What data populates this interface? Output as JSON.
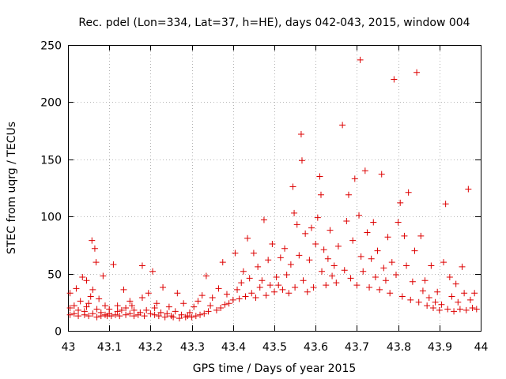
{
  "chart_data": {
    "type": "scatter",
    "title": "Rec. pdel (Lon=334, Lat=37, h=HE), days 042-043, 2015, window 004",
    "xlabel": "GPS time / Days of year 2015",
    "ylabel": "STEC from uqrg / TECUs",
    "xlim": [
      43,
      44
    ],
    "ylim": [
      0,
      250
    ],
    "xticks": [
      "43",
      "43.1",
      "43.2",
      "43.3",
      "43.4",
      "43.5",
      "43.6",
      "43.7",
      "43.8",
      "43.9",
      "44"
    ],
    "yticks": [
      "0",
      "50",
      "100",
      "150",
      "200",
      "250"
    ],
    "grid": true,
    "marker": "+",
    "color": "#dd0000",
    "series": [
      {
        "name": "STEC",
        "points": [
          [
            43.005,
            14
          ],
          [
            43.005,
            20
          ],
          [
            43.005,
            33
          ],
          [
            43.015,
            15
          ],
          [
            43.015,
            22
          ],
          [
            43.02,
            37
          ],
          [
            43.025,
            13
          ],
          [
            43.025,
            18
          ],
          [
            43.03,
            26
          ],
          [
            43.035,
            47
          ],
          [
            43.04,
            14
          ],
          [
            43.04,
            17
          ],
          [
            43.045,
            21
          ],
          [
            43.045,
            44
          ],
          [
            43.05,
            13
          ],
          [
            43.05,
            24
          ],
          [
            43.055,
            30
          ],
          [
            43.058,
            79
          ],
          [
            43.06,
            15
          ],
          [
            43.06,
            36
          ],
          [
            43.065,
            72
          ],
          [
            43.068,
            60
          ],
          [
            43.07,
            12
          ],
          [
            43.07,
            19
          ],
          [
            43.075,
            28
          ],
          [
            43.08,
            13
          ],
          [
            43.08,
            16
          ],
          [
            43.085,
            48
          ],
          [
            43.09,
            14
          ],
          [
            43.09,
            22
          ],
          [
            43.095,
            13
          ],
          [
            43.1,
            15
          ],
          [
            43.1,
            19
          ],
          [
            43.105,
            13
          ],
          [
            43.11,
            58
          ],
          [
            43.115,
            14
          ],
          [
            43.12,
            17
          ],
          [
            43.12,
            22
          ],
          [
            43.125,
            13
          ],
          [
            43.13,
            18
          ],
          [
            43.135,
            36
          ],
          [
            43.14,
            14
          ],
          [
            43.14,
            20
          ],
          [
            43.15,
            15
          ],
          [
            43.15,
            26
          ],
          [
            43.155,
            22
          ],
          [
            43.16,
            13
          ],
          [
            43.16,
            18
          ],
          [
            43.17,
            14
          ],
          [
            43.175,
            16
          ],
          [
            43.18,
            57
          ],
          [
            43.18,
            29
          ],
          [
            43.185,
            13
          ],
          [
            43.19,
            18
          ],
          [
            43.195,
            33
          ],
          [
            43.2,
            15
          ],
          [
            43.205,
            52
          ],
          [
            43.21,
            14
          ],
          [
            43.21,
            20
          ],
          [
            43.215,
            24
          ],
          [
            43.22,
            13
          ],
          [
            43.225,
            16
          ],
          [
            43.23,
            38
          ],
          [
            43.235,
            12
          ],
          [
            43.24,
            15
          ],
          [
            43.245,
            21
          ],
          [
            43.25,
            13
          ],
          [
            43.255,
            12
          ],
          [
            43.26,
            17
          ],
          [
            43.265,
            33
          ],
          [
            43.27,
            11
          ],
          [
            43.275,
            14
          ],
          [
            43.28,
            24
          ],
          [
            43.285,
            12
          ],
          [
            43.29,
            13
          ],
          [
            43.295,
            16
          ],
          [
            43.3,
            12
          ],
          [
            43.305,
            21
          ],
          [
            43.31,
            13
          ],
          [
            43.315,
            26
          ],
          [
            43.32,
            14
          ],
          [
            43.325,
            31
          ],
          [
            43.33,
            15
          ],
          [
            43.335,
            48
          ],
          [
            43.34,
            17
          ],
          [
            43.345,
            22
          ],
          [
            43.35,
            29
          ],
          [
            43.36,
            18
          ],
          [
            43.365,
            37
          ],
          [
            43.37,
            20
          ],
          [
            43.375,
            60
          ],
          [
            43.38,
            23
          ],
          [
            43.385,
            32
          ],
          [
            43.39,
            24
          ],
          [
            43.4,
            27
          ],
          [
            43.405,
            68
          ],
          [
            43.41,
            36
          ],
          [
            43.415,
            28
          ],
          [
            43.42,
            42
          ],
          [
            43.425,
            52
          ],
          [
            43.43,
            30
          ],
          [
            43.435,
            81
          ],
          [
            43.44,
            46
          ],
          [
            43.445,
            33
          ],
          [
            43.45,
            68
          ],
          [
            43.455,
            29
          ],
          [
            43.46,
            56
          ],
          [
            43.465,
            38
          ],
          [
            43.47,
            44
          ],
          [
            43.475,
            97
          ],
          [
            43.48,
            31
          ],
          [
            43.485,
            62
          ],
          [
            43.49,
            40
          ],
          [
            43.495,
            76
          ],
          [
            43.5,
            34
          ],
          [
            43.505,
            47
          ],
          [
            43.51,
            40
          ],
          [
            43.515,
            64
          ],
          [
            43.52,
            36
          ],
          [
            43.525,
            72
          ],
          [
            43.53,
            49
          ],
          [
            43.535,
            33
          ],
          [
            43.54,
            58
          ],
          [
            43.545,
            126
          ],
          [
            43.548,
            103
          ],
          [
            43.55,
            38
          ],
          [
            43.555,
            93
          ],
          [
            43.56,
            66
          ],
          [
            43.565,
            172
          ],
          [
            43.567,
            149
          ],
          [
            43.57,
            44
          ],
          [
            43.575,
            85
          ],
          [
            43.58,
            34
          ],
          [
            43.585,
            62
          ],
          [
            43.59,
            90
          ],
          [
            43.595,
            38
          ],
          [
            43.6,
            76
          ],
          [
            43.605,
            99
          ],
          [
            43.61,
            135
          ],
          [
            43.613,
            119
          ],
          [
            43.615,
            52
          ],
          [
            43.62,
            71
          ],
          [
            43.625,
            40
          ],
          [
            43.63,
            63
          ],
          [
            43.635,
            88
          ],
          [
            43.64,
            48
          ],
          [
            43.645,
            57
          ],
          [
            43.65,
            42
          ],
          [
            43.655,
            74
          ],
          [
            43.665,
            180
          ],
          [
            43.67,
            53
          ],
          [
            43.675,
            96
          ],
          [
            43.68,
            119
          ],
          [
            43.685,
            46
          ],
          [
            43.69,
            79
          ],
          [
            43.695,
            133
          ],
          [
            43.7,
            40
          ],
          [
            43.705,
            101
          ],
          [
            43.708,
            237
          ],
          [
            43.71,
            65
          ],
          [
            43.715,
            52
          ],
          [
            43.72,
            140
          ],
          [
            43.725,
            86
          ],
          [
            43.73,
            38
          ],
          [
            43.735,
            63
          ],
          [
            43.74,
            95
          ],
          [
            43.745,
            47
          ],
          [
            43.75,
            70
          ],
          [
            43.755,
            36
          ],
          [
            43.76,
            137
          ],
          [
            43.765,
            55
          ],
          [
            43.77,
            44
          ],
          [
            43.775,
            82
          ],
          [
            43.78,
            33
          ],
          [
            43.785,
            60
          ],
          [
            43.79,
            220
          ],
          [
            43.795,
            49
          ],
          [
            43.8,
            95
          ],
          [
            43.805,
            112
          ],
          [
            43.81,
            30
          ],
          [
            43.815,
            83
          ],
          [
            43.82,
            57
          ],
          [
            43.825,
            121
          ],
          [
            43.83,
            27
          ],
          [
            43.835,
            43
          ],
          [
            43.84,
            70
          ],
          [
            43.845,
            226
          ],
          [
            43.85,
            25
          ],
          [
            43.855,
            83
          ],
          [
            43.86,
            35
          ],
          [
            43.865,
            44
          ],
          [
            43.87,
            22
          ],
          [
            43.875,
            29
          ],
          [
            43.88,
            57
          ],
          [
            43.885,
            20
          ],
          [
            43.89,
            25
          ],
          [
            43.895,
            34
          ],
          [
            43.9,
            18
          ],
          [
            43.905,
            23
          ],
          [
            43.91,
            60
          ],
          [
            43.915,
            111
          ],
          [
            43.92,
            19
          ],
          [
            43.925,
            47
          ],
          [
            43.93,
            30
          ],
          [
            43.935,
            17
          ],
          [
            43.94,
            41
          ],
          [
            43.945,
            25
          ],
          [
            43.95,
            19
          ],
          [
            43.955,
            56
          ],
          [
            43.96,
            33
          ],
          [
            43.965,
            18
          ],
          [
            43.97,
            124
          ],
          [
            43.975,
            27
          ],
          [
            43.98,
            20
          ],
          [
            43.985,
            33
          ],
          [
            43.99,
            19
          ]
        ]
      }
    ]
  }
}
